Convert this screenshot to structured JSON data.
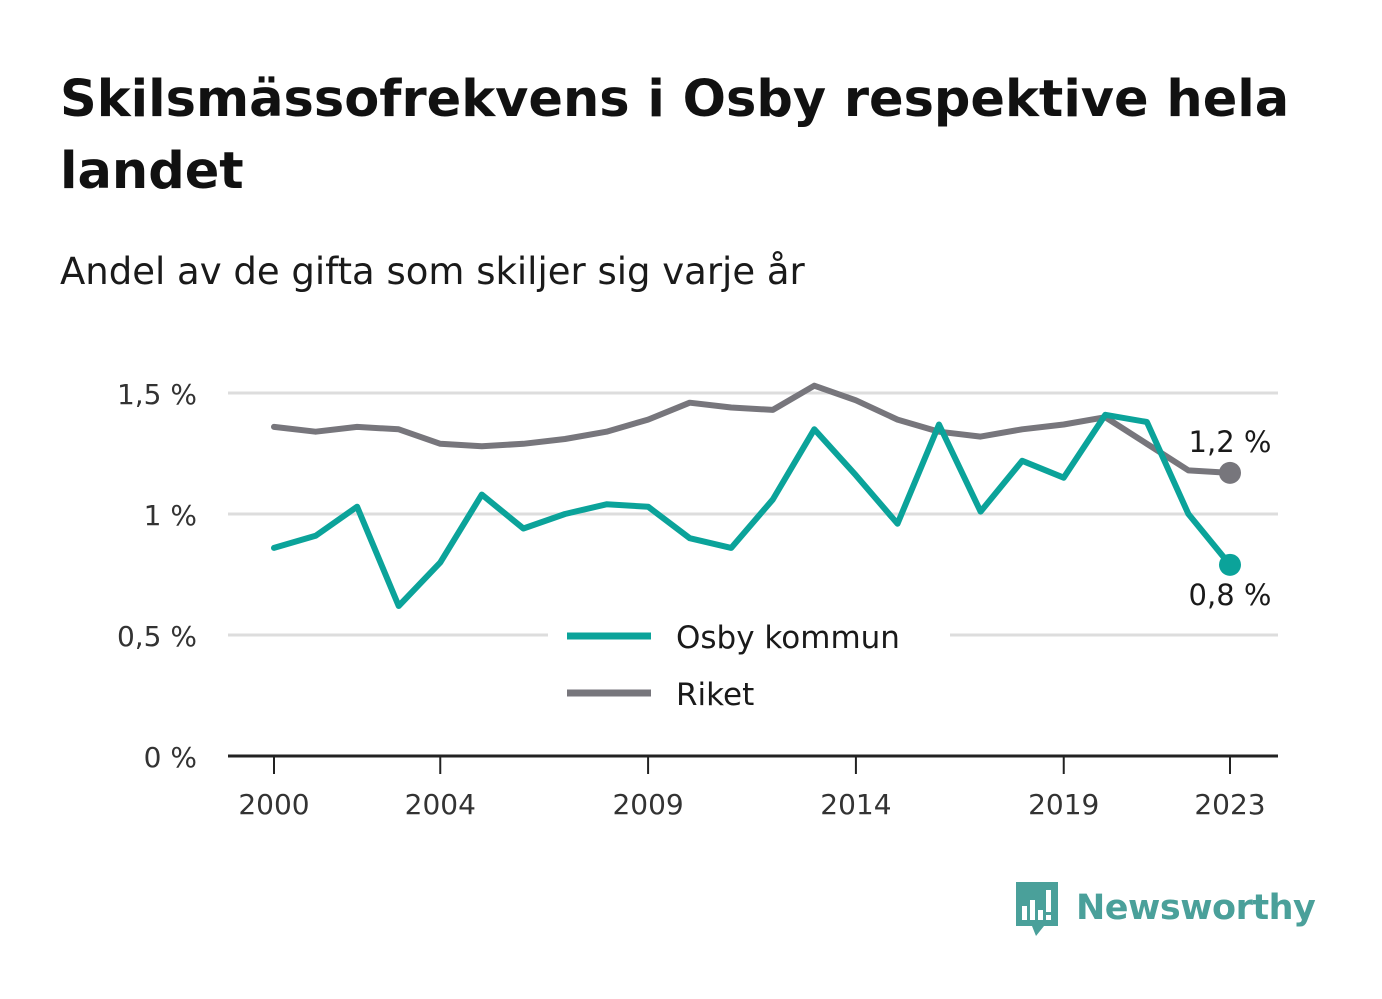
{
  "title": "Skilsmässofrekvens i Osby respektive hela landet",
  "subtitle": "Andel av de gifta som skiljer sig varje år",
  "brand": "Newsworthy",
  "colors": {
    "osby": "#0ba39a",
    "riket": "#77767c",
    "grid": "#dddddd",
    "axis": "#222222",
    "brand": "#4aa09a"
  },
  "chart_data": {
    "type": "line",
    "title": "Skilsmässofrekvens i Osby respektive hela landet",
    "subtitle": "Andel av de gifta som skiljer sig varje år",
    "x": [
      2000,
      2001,
      2002,
      2003,
      2004,
      2005,
      2006,
      2007,
      2008,
      2009,
      2010,
      2011,
      2012,
      2013,
      2014,
      2015,
      2016,
      2017,
      2018,
      2019,
      2020,
      2021,
      2022,
      2023
    ],
    "x_ticks": [
      2000,
      2004,
      2009,
      2014,
      2019,
      2023
    ],
    "ylim": [
      0,
      1.5
    ],
    "y_ticks": [
      0,
      0.5,
      1,
      1.5
    ],
    "y_tick_labels": [
      "0 %",
      "0,5 %",
      "1 %",
      "1,5 %"
    ],
    "grid": true,
    "legend_position": "center",
    "series": [
      {
        "name": "Osby kommun",
        "color": "#0ba39a",
        "values": [
          0.86,
          0.91,
          1.03,
          0.62,
          0.8,
          1.08,
          0.94,
          1.0,
          1.04,
          1.03,
          0.9,
          0.86,
          1.06,
          1.35,
          1.16,
          0.96,
          1.37,
          1.01,
          1.22,
          1.15,
          1.41,
          1.38,
          1.0,
          0.79
        ],
        "end_label": "0,8 %"
      },
      {
        "name": "Riket",
        "color": "#77767c",
        "values": [
          1.36,
          1.34,
          1.36,
          1.35,
          1.29,
          1.28,
          1.29,
          1.31,
          1.34,
          1.39,
          1.46,
          1.44,
          1.43,
          1.53,
          1.47,
          1.39,
          1.34,
          1.32,
          1.35,
          1.37,
          1.4,
          1.29,
          1.18,
          1.17
        ],
        "end_label": "1,2 %"
      }
    ]
  }
}
